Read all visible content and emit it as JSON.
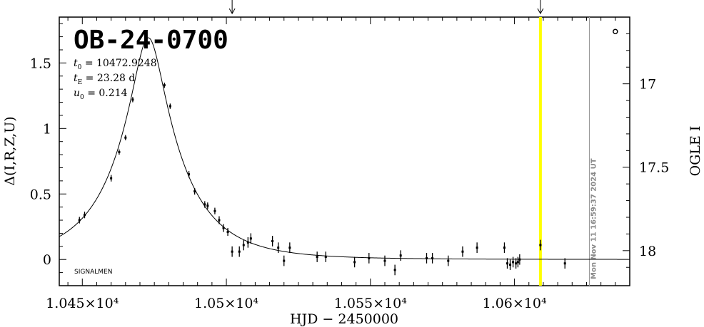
{
  "chart_data": {
    "type": "scatter",
    "title": "OB-24-0700",
    "params": [
      {
        "symbol": "t",
        "sub": "0",
        "text": " = 10472.9248"
      },
      {
        "symbol": "t",
        "sub": "E",
        "text": " = 23.28 d"
      },
      {
        "symbol": "u",
        "sub": "0",
        "text": " = 0.214"
      }
    ],
    "xlabel": "HJD − 2450000",
    "ylabel": "Δ(I,R,Z,U)",
    "y2label": "OGLE I",
    "xlim": [
      10442,
      10640
    ],
    "ylim": [
      -0.2,
      1.85
    ],
    "y2lim": [
      18.21,
      16.6
    ],
    "x_ticks": [
      {
        "value": 10450,
        "label": "1.045×10⁴"
      },
      {
        "value": 10500,
        "label": "1.05×10⁴"
      },
      {
        "value": 10550,
        "label": "1.055×10⁴"
      },
      {
        "value": 10600,
        "label": "1.06×10⁴"
      }
    ],
    "y_ticks": [
      {
        "value": 0,
        "label": "0"
      },
      {
        "value": 0.5,
        "label": "0.5"
      },
      {
        "value": 1,
        "label": "1"
      },
      {
        "value": 1.5,
        "label": "1.5"
      }
    ],
    "y2_ticks": [
      {
        "value": 17,
        "label": "17"
      },
      {
        "value": 17.5,
        "label": "17.5"
      },
      {
        "value": 18,
        "label": "18"
      }
    ],
    "model": {
      "t0": 10472.9248,
      "tE": 23.28,
      "u0": 0.214
    },
    "series": [
      {
        "name": "",
        "points": [
          {
            "x": 10449.0,
            "y": 0.3,
            "err": 0.025
          },
          {
            "x": 10450.8,
            "y": 0.34,
            "err": 0.025
          },
          {
            "x": 10460.0,
            "y": 0.62,
            "err": 0.025
          },
          {
            "x": 10462.8,
            "y": 0.82,
            "err": 0.02
          },
          {
            "x": 10465.0,
            "y": 0.93,
            "err": 0.02
          },
          {
            "x": 10467.5,
            "y": 1.22,
            "err": 0.02
          },
          {
            "x": 10478.5,
            "y": 1.33,
            "err": 0.02
          },
          {
            "x": 10480.5,
            "y": 1.17,
            "err": 0.02
          },
          {
            "x": 10487.0,
            "y": 0.65,
            "err": 0.025
          },
          {
            "x": 10489.0,
            "y": 0.52,
            "err": 0.025
          },
          {
            "x": 10492.5,
            "y": 0.42,
            "err": 0.025
          },
          {
            "x": 10493.5,
            "y": 0.41,
            "err": 0.025
          },
          {
            "x": 10496.0,
            "y": 0.37,
            "err": 0.025
          },
          {
            "x": 10497.5,
            "y": 0.3,
            "err": 0.03
          },
          {
            "x": 10499.0,
            "y": 0.24,
            "err": 0.03
          },
          {
            "x": 10500.5,
            "y": 0.21,
            "err": 0.03
          },
          {
            "x": 10502.0,
            "y": 0.06,
            "err": 0.04
          },
          {
            "x": 10504.5,
            "y": 0.06,
            "err": 0.04
          },
          {
            "x": 10506.0,
            "y": 0.11,
            "err": 0.04
          },
          {
            "x": 10507.5,
            "y": 0.13,
            "err": 0.04
          },
          {
            "x": 10508.5,
            "y": 0.16,
            "err": 0.04
          },
          {
            "x": 10516.0,
            "y": 0.14,
            "err": 0.04
          },
          {
            "x": 10518.0,
            "y": 0.09,
            "err": 0.04
          },
          {
            "x": 10520.0,
            "y": -0.01,
            "err": 0.04
          },
          {
            "x": 10522.0,
            "y": 0.09,
            "err": 0.04
          },
          {
            "x": 10531.5,
            "y": 0.02,
            "err": 0.04
          },
          {
            "x": 10534.5,
            "y": 0.02,
            "err": 0.04
          },
          {
            "x": 10544.5,
            "y": -0.02,
            "err": 0.04
          },
          {
            "x": 10549.5,
            "y": 0.01,
            "err": 0.04
          },
          {
            "x": 10555.0,
            "y": -0.01,
            "err": 0.04
          },
          {
            "x": 10558.5,
            "y": -0.08,
            "err": 0.04
          },
          {
            "x": 10560.5,
            "y": 0.03,
            "err": 0.04
          },
          {
            "x": 10569.5,
            "y": 0.01,
            "err": 0.04
          },
          {
            "x": 10571.5,
            "y": 0.01,
            "err": 0.04
          },
          {
            "x": 10577.0,
            "y": -0.01,
            "err": 0.04
          },
          {
            "x": 10582.0,
            "y": 0.06,
            "err": 0.04
          },
          {
            "x": 10587.0,
            "y": 0.09,
            "err": 0.04
          },
          {
            "x": 10596.5,
            "y": 0.09,
            "err": 0.04
          },
          {
            "x": 10597.5,
            "y": -0.03,
            "err": 0.04
          },
          {
            "x": 10598.5,
            "y": -0.04,
            "err": 0.04
          },
          {
            "x": 10599.5,
            "y": -0.02,
            "err": 0.04
          },
          {
            "x": 10600.5,
            "y": -0.03,
            "err": 0.04
          },
          {
            "x": 10601.2,
            "y": -0.02,
            "err": 0.04
          },
          {
            "x": 10601.8,
            "y": 0.0,
            "err": 0.04
          },
          {
            "x": 10609.0,
            "y": 0.11,
            "err": 0.04
          },
          {
            "x": 10617.5,
            "y": -0.03,
            "err": 0.04
          }
        ]
      }
    ],
    "markers": {
      "arrows_x": [
        10502,
        10609
      ],
      "yellow_line_x": 10609,
      "gray_line_x": 10626,
      "open_circle_x": 10635,
      "open_circle_y": 1.74
    },
    "signature": "SIGNALMEN",
    "timestamp": "Mon Nov 11 16:59:37 2024 UT"
  }
}
